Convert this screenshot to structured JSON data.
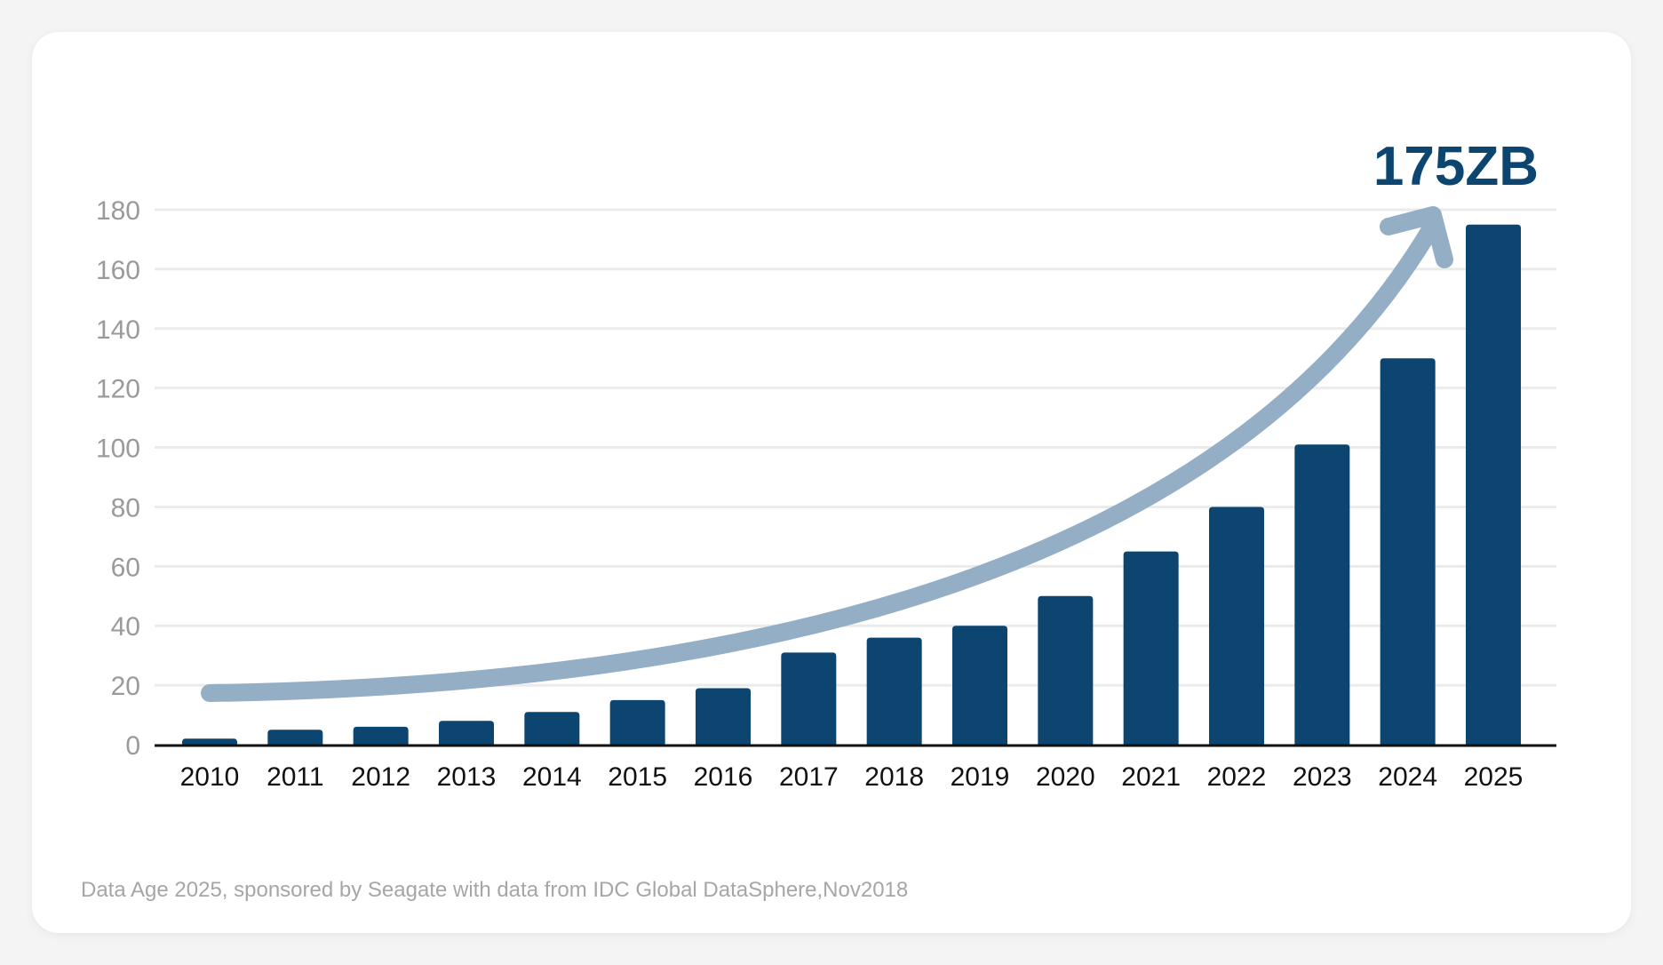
{
  "chart_data": {
    "type": "bar",
    "categories": [
      "2010",
      "2011",
      "2012",
      "2013",
      "2014",
      "2015",
      "2016",
      "2017",
      "2018",
      "2019",
      "2020",
      "2021",
      "2022",
      "2023",
      "2024",
      "2025"
    ],
    "values": [
      2,
      5,
      6,
      8,
      11,
      15,
      19,
      31,
      36,
      40,
      50,
      65,
      80,
      101,
      130,
      175
    ],
    "yticks": [
      0,
      20,
      40,
      60,
      80,
      100,
      120,
      140,
      160,
      180
    ],
    "ylim": [
      0,
      180
    ],
    "grid": true,
    "trend_arrow": true,
    "callout": "175ZB",
    "bar_color": "#0b4570",
    "arrow_color": "#93aec5",
    "grid_color": "#ebebeb"
  },
  "source": "Data Age 2025, sponsored by Seagate with data from IDC Global DataSphere,Nov2018"
}
